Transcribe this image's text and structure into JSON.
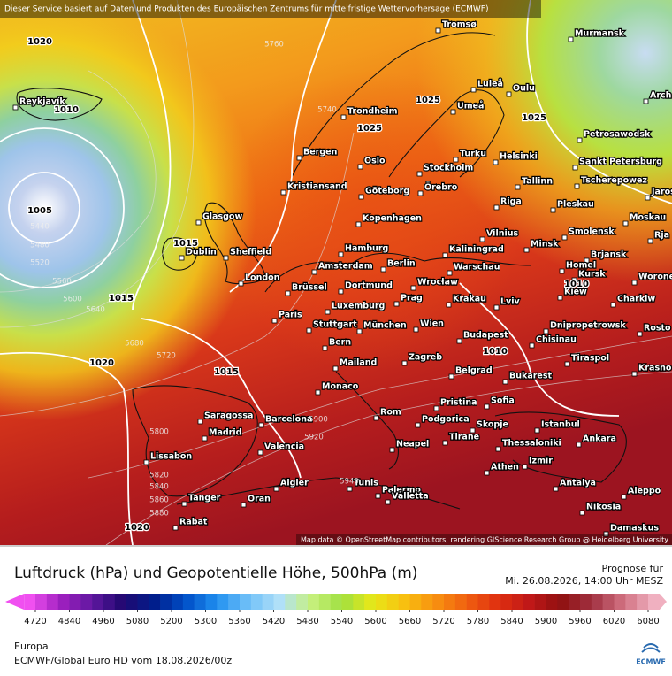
{
  "header": "Dieser Service basiert auf Daten und Produkten des Europäischen Zentrums für mittelfristige Wettervorhersage (ECMWF)",
  "map": {
    "cities": [
      "Tromsø",
      "Murmansk",
      "Reykjavík",
      "Luleå",
      "Oulu",
      "Arch",
      "Umeå",
      "Trondheim",
      "Petrosawodsk",
      "Bergen",
      "Turku",
      "Helsinki",
      "Oslo",
      "Sankt Petersburg",
      "Stockholm",
      "Kristiansand",
      "Göteborg",
      "Örebro",
      "Tallinn",
      "Tscherepowez",
      "Jaros",
      "Riga",
      "Pleskau",
      "Glasgow",
      "Kopenhagen",
      "Moskau",
      "Vilnius",
      "Smolensk",
      "Rja",
      "Dublin",
      "Sheffield",
      "Hamburg",
      "Kaliningrad",
      "Minsk",
      "Brjansk",
      "Amsterdam",
      "Berlin",
      "Warschau",
      "Homel",
      "London",
      "Brüssel",
      "Dortmund",
      "Wrocław",
      "Kursk",
      "Worone",
      "Prag",
      "Krakau",
      "Kiew",
      "Lviv",
      "Charkiw",
      "Luxemburg",
      "Paris",
      "Stuttgart",
      "München",
      "Wien",
      "Dnipropetrowsk",
      "Rosto",
      "Budapest",
      "Chisinau",
      "Bern",
      "Tiraspol",
      "Mailand",
      "Zagreb",
      "Krasno",
      "Belgrad",
      "Bukarest",
      "Monaco",
      "Pristina",
      "Sofia",
      "Saragossa",
      "Barcelona",
      "Rom",
      "Podgorica",
      "Skopje",
      "Istanbul",
      "Madrid",
      "Tirane",
      "Thessaloniki",
      "Ankara",
      "Valencia",
      "Neapel",
      "Lissabon",
      "Izmir",
      "Palermo",
      "Athen",
      "Algier",
      "Tunis",
      "Antalya",
      "Aleppo",
      "Tanger",
      "Oran",
      "Valletta",
      "Nikosia",
      "Rabat",
      "Damaskus"
    ],
    "isobar_labels": [
      1020,
      1010,
      1005,
      1025,
      1025,
      1025,
      1015,
      1015,
      1020,
      1015,
      1010,
      1010,
      1020
    ],
    "height_labels": [
      5760,
      5740,
      5440,
      5480,
      5520,
      5560,
      5600,
      5640,
      5680,
      5720,
      5900,
      5880,
      5860,
      5840,
      5820,
      5800,
      5920,
      5940
    ],
    "attribution": "Map data © OpenStreetMap contributors, rendering GIScience Research Group @ Heidelberg University"
  },
  "title": "Luftdruck (hPa) und Geopotentielle Höhe, 500hPa (m)",
  "forecast_label": "Prognose für",
  "forecast_time": "Mi. 26.08.2026, 14:00 Uhr MESZ",
  "colorbar": {
    "ticks": [
      4720,
      4840,
      4960,
      5080,
      5200,
      5300,
      5360,
      5420,
      5480,
      5540,
      5600,
      5660,
      5720,
      5780,
      5840,
      5900,
      5960,
      6020,
      6080
    ]
  },
  "region": "Europa",
  "model": "ECMWF/Global Euro HD vom  18.08.2026/00z",
  "logo": "ECMWF"
}
